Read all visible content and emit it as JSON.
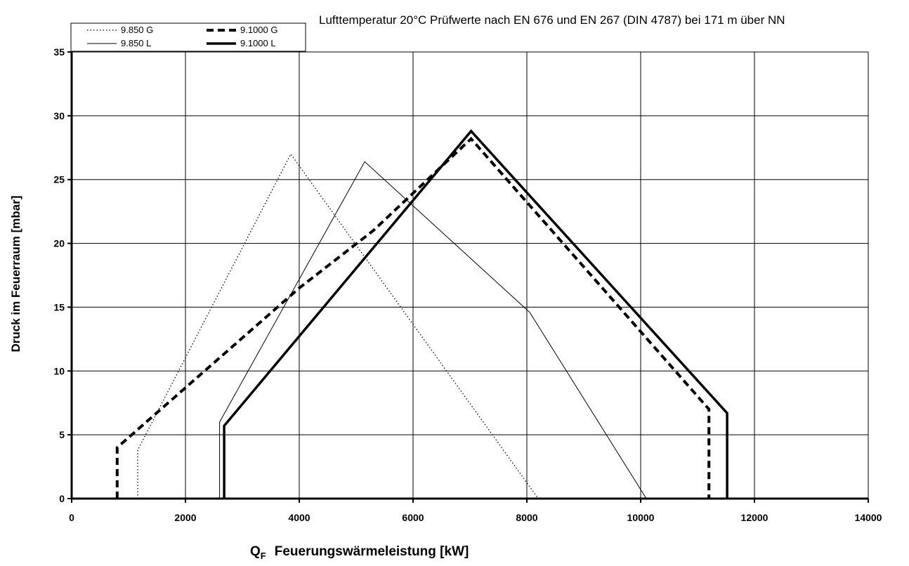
{
  "chart_data": {
    "type": "line",
    "annotation": "Lufttemperatur 20°C Prüfwerte nach EN 676 und EN 267 (DIN 4787) bei 171 m über NN",
    "xlabel_symbol": "Q",
    "xlabel_subscript": "F",
    "xlabel_text": "Feuerungswärmeleistung [kW]",
    "ylabel": "Druck im Feuerraum [mbar]",
    "xlim": [
      0,
      14000
    ],
    "ylim": [
      0,
      35
    ],
    "x_ticks": [
      0,
      2000,
      4000,
      6000,
      8000,
      10000,
      12000,
      14000
    ],
    "y_ticks": [
      0,
      5,
      10,
      15,
      20,
      25,
      30,
      35
    ],
    "x_tick_labels": [
      "0",
      "2000",
      "4000",
      "6000",
      "8000",
      "10000",
      "12000",
      "14000"
    ],
    "y_tick_labels": [
      "0",
      "5",
      "10",
      "15",
      "20",
      "25",
      "30",
      "35"
    ],
    "grid": true,
    "legend_position": "top-left",
    "series": [
      {
        "name": "9.850 G",
        "style": "dotted",
        "points": [
          [
            1160,
            0
          ],
          [
            1160,
            3.8
          ],
          [
            3850,
            27
          ],
          [
            8200,
            0
          ]
        ]
      },
      {
        "name": "9.1000 G",
        "style": "dashed",
        "points": [
          [
            800,
            0
          ],
          [
            800,
            4.0
          ],
          [
            4000,
            16.5
          ],
          [
            5300,
            21
          ],
          [
            7020,
            28.2
          ],
          [
            11200,
            7.0
          ],
          [
            11200,
            0
          ]
        ]
      },
      {
        "name": "9.850 L",
        "style": "thin",
        "points": [
          [
            2600,
            0
          ],
          [
            2600,
            6.0
          ],
          [
            5150,
            26.4
          ],
          [
            8050,
            14.6
          ],
          [
            10100,
            0
          ]
        ]
      },
      {
        "name": "9.1000 L",
        "style": "thick",
        "points": [
          [
            2680,
            0
          ],
          [
            2680,
            5.7
          ],
          [
            7020,
            28.8
          ],
          [
            11520,
            6.7
          ],
          [
            11520,
            0
          ]
        ]
      }
    ]
  }
}
